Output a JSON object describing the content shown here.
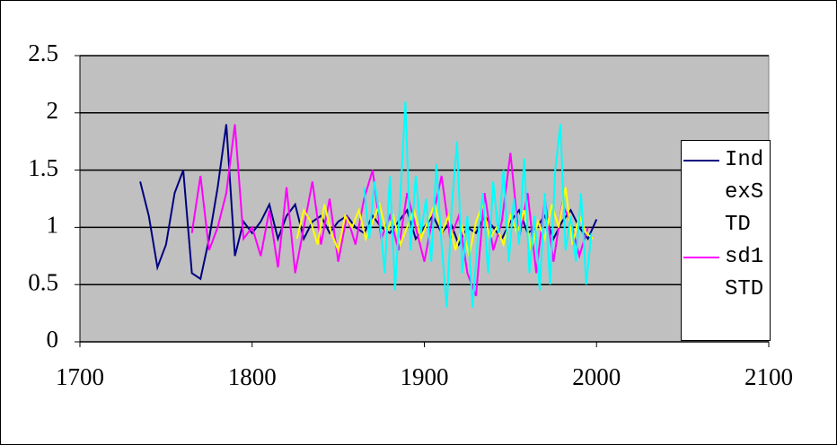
{
  "chart_data": {
    "type": "line",
    "xlim": [
      1700,
      2100
    ],
    "xticks": [
      1700,
      1800,
      1900,
      2000,
      2100
    ],
    "ylim": [
      0,
      2.5
    ],
    "yticks": [
      0,
      0.5,
      1,
      1.5,
      2,
      2.5
    ],
    "grid": true,
    "legend": "right",
    "series": [
      {
        "name": "IndexSTD",
        "color": "#000080",
        "x": [
          1735,
          1740,
          1745,
          1750,
          1755,
          1760,
          1765,
          1770,
          1775,
          1780,
          1785,
          1790,
          1795,
          1800,
          1805,
          1810,
          1815,
          1820,
          1825,
          1830,
          1835,
          1840,
          1845,
          1850,
          1855,
          1860,
          1865,
          1870,
          1875,
          1880,
          1885,
          1890,
          1895,
          1900,
          1905,
          1910,
          1915,
          1920,
          1925,
          1930,
          1935,
          1940,
          1945,
          1950,
          1955,
          1960,
          1965,
          1970,
          1975,
          1980,
          1985,
          1990,
          1995,
          2000
        ],
        "values": [
          1.4,
          1.1,
          0.65,
          0.85,
          1.3,
          1.5,
          0.6,
          0.55,
          0.9,
          1.35,
          1.9,
          0.75,
          1.05,
          0.95,
          1.05,
          1.2,
          0.9,
          1.1,
          1.2,
          0.9,
          1.05,
          1.1,
          0.95,
          1.05,
          1.1,
          1.0,
          0.95,
          1.1,
          1.0,
          0.95,
          1.05,
          1.15,
          0.9,
          1.0,
          1.1,
          0.95,
          1.05,
          0.85,
          1.0,
          0.95,
          1.1,
          1.0,
          0.9,
          1.05,
          1.15,
          0.95,
          1.0,
          1.1,
          0.9,
          1.05,
          1.15,
          1.0,
          0.9,
          1.07
        ]
      },
      {
        "name": "sd1STD",
        "color": "#ff00ff",
        "x": [
          1765,
          1770,
          1775,
          1780,
          1785,
          1790,
          1795,
          1800,
          1805,
          1810,
          1815,
          1820,
          1825,
          1830,
          1835,
          1840,
          1845,
          1850,
          1855,
          1860,
          1865,
          1870,
          1875,
          1880,
          1885,
          1890,
          1895,
          1900,
          1905,
          1910,
          1915,
          1920,
          1925,
          1930,
          1935,
          1940,
          1945,
          1950,
          1955,
          1960,
          1965,
          1970,
          1975,
          1980,
          1985,
          1990,
          1995
        ],
        "values": [
          0.95,
          1.45,
          0.8,
          1.0,
          1.3,
          1.9,
          0.9,
          1.0,
          0.75,
          1.15,
          0.65,
          1.35,
          0.6,
          1.0,
          1.4,
          0.85,
          1.25,
          0.7,
          1.1,
          0.85,
          1.25,
          1.5,
          0.9,
          1.1,
          0.8,
          1.3,
          1.0,
          0.7,
          1.1,
          1.45,
          0.9,
          1.1,
          0.6,
          0.4,
          1.3,
          0.8,
          1.05,
          1.65,
          0.9,
          1.3,
          0.6,
          1.25,
          0.7,
          1.2,
          1.05,
          0.75,
          1.0
        ]
      },
      {
        "color": "#ffff00",
        "x": [
          1826,
          1830,
          1834,
          1838,
          1842,
          1846,
          1850,
          1854,
          1858,
          1862,
          1866,
          1870,
          1874,
          1878,
          1882,
          1886,
          1890,
          1894,
          1898,
          1902,
          1906,
          1910,
          1914,
          1918,
          1922,
          1926,
          1930,
          1934,
          1938,
          1942,
          1946,
          1950,
          1954,
          1958,
          1962,
          1966,
          1970,
          1974,
          1978,
          1982,
          1986,
          1990,
          1994,
          1998
        ],
        "values": [
          0.9,
          1.15,
          1.05,
          0.85,
          1.2,
          0.95,
          0.8,
          1.1,
          1.0,
          1.15,
          0.9,
          1.05,
          1.2,
          0.95,
          1.1,
          0.85,
          1.0,
          1.15,
          0.9,
          1.05,
          1.2,
          0.95,
          1.1,
          0.8,
          1.0,
          0.75,
          1.05,
          1.2,
          0.9,
          1.0,
          0.85,
          1.1,
          0.95,
          1.15,
          0.8,
          1.05,
          0.9,
          1.2,
          1.0,
          1.35,
          0.85,
          1.1,
          0.95,
          0.9
        ]
      },
      {
        "color": "#00ffff",
        "x": [
          1865,
          1868,
          1871,
          1874,
          1877,
          1880,
          1883,
          1886,
          1889,
          1892,
          1895,
          1898,
          1901,
          1904,
          1907,
          1910,
          1913,
          1916,
          1919,
          1922,
          1925,
          1928,
          1931,
          1934,
          1937,
          1940,
          1943,
          1946,
          1949,
          1952,
          1955,
          1958,
          1961,
          1964,
          1967,
          1970,
          1973,
          1976,
          1979,
          1982,
          1985,
          1988,
          1991,
          1994,
          1997
        ],
        "values": [
          1.35,
          0.9,
          1.4,
          1.1,
          0.6,
          1.45,
          0.45,
          1.25,
          2.1,
          0.8,
          1.45,
          0.95,
          1.25,
          0.7,
          1.55,
          0.85,
          0.3,
          1.2,
          1.75,
          0.6,
          1.1,
          0.3,
          0.9,
          1.3,
          0.6,
          1.4,
          0.95,
          1.5,
          0.7,
          1.25,
          0.85,
          1.6,
          0.6,
          1.1,
          0.45,
          1.3,
          0.5,
          1.5,
          1.9,
          0.8,
          1.1,
          0.7,
          1.3,
          0.5,
          0.95
        ]
      }
    ]
  }
}
